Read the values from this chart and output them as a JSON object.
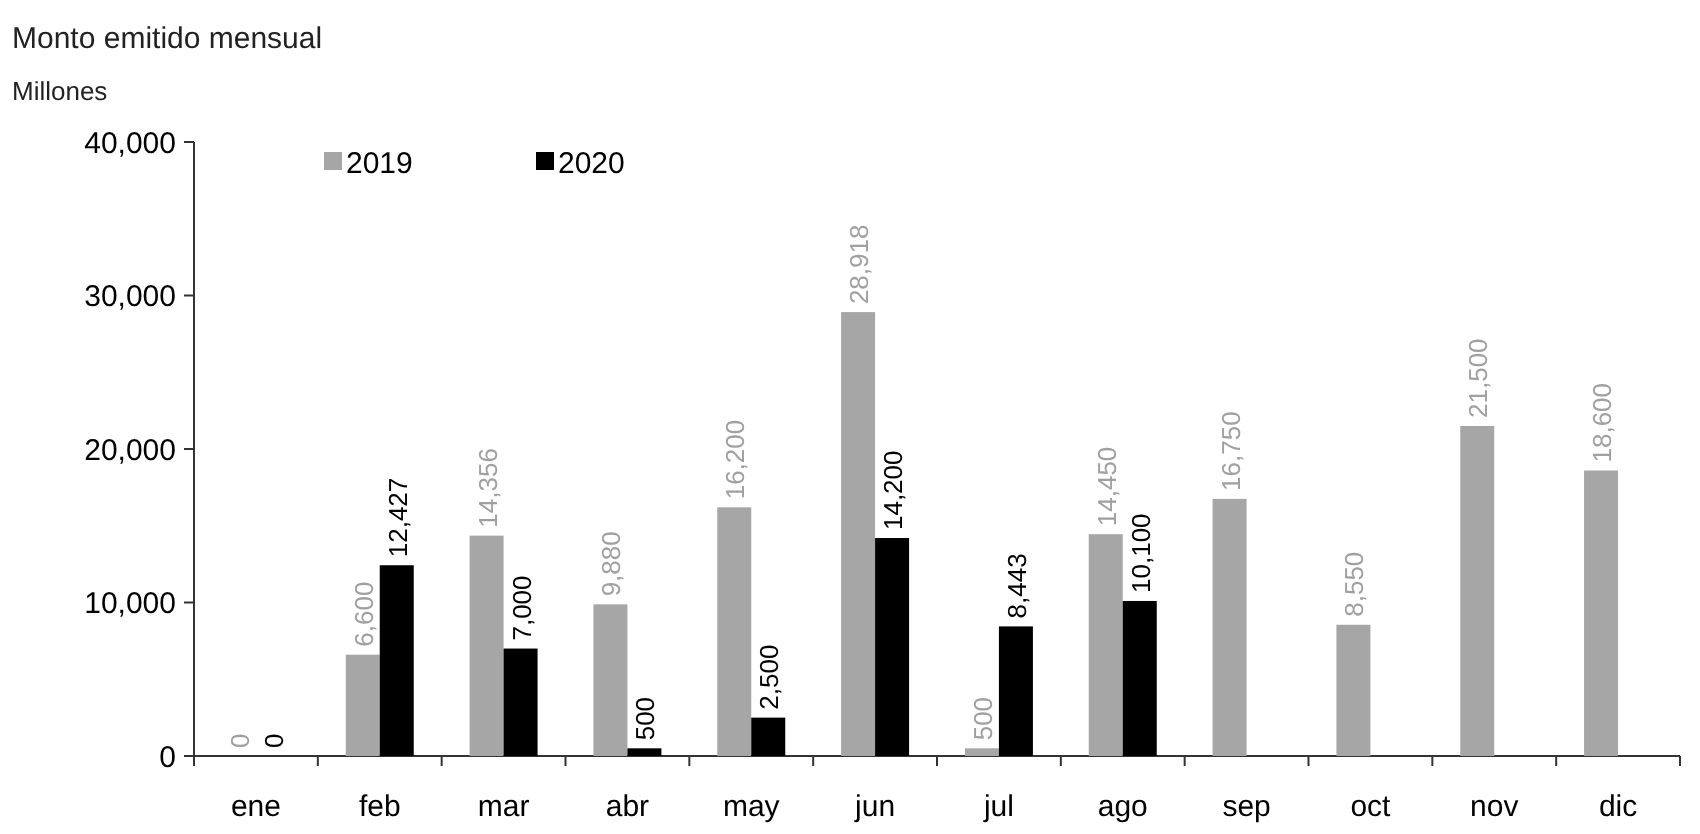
{
  "chart_data": {
    "type": "bar",
    "title": "Monto emitido mensual",
    "ylabel": "Millones",
    "categories": [
      "ene",
      "feb",
      "mar",
      "abr",
      "may",
      "jun",
      "jul",
      "ago",
      "sep",
      "oct",
      "nov",
      "dic"
    ],
    "series": [
      {
        "name": "2019",
        "color": "#a6a6a6",
        "values": [
          0,
          6600,
          14356,
          9880,
          16200,
          28918,
          500,
          14450,
          16750,
          8550,
          21500,
          18600
        ],
        "value_labels": [
          "0",
          "6,600",
          "14,356",
          "9,880",
          "16,200",
          "28,918",
          "500",
          "14,450",
          "16,750",
          "8,550",
          "21,500",
          "18,600"
        ]
      },
      {
        "name": "2020",
        "color": "#000000",
        "values": [
          0,
          12427,
          7000,
          500,
          2500,
          14200,
          8443,
          10100,
          null,
          null,
          null,
          null
        ],
        "value_labels": [
          "0",
          "12,427",
          "7,000",
          "500",
          "2,500",
          "14,200",
          "8,443",
          "10,100",
          null,
          null,
          null,
          null
        ]
      }
    ],
    "ylim": [
      0,
      40000
    ],
    "yticks": [
      0,
      {
        "value": 10000,
        "label": "10,000"
      },
      {
        "value": 20000,
        "label": "20,000"
      },
      {
        "value": 30000,
        "label": "30,000"
      },
      {
        "value": 40000,
        "label": "40,000"
      }
    ],
    "grid": false,
    "legend": "top left"
  }
}
